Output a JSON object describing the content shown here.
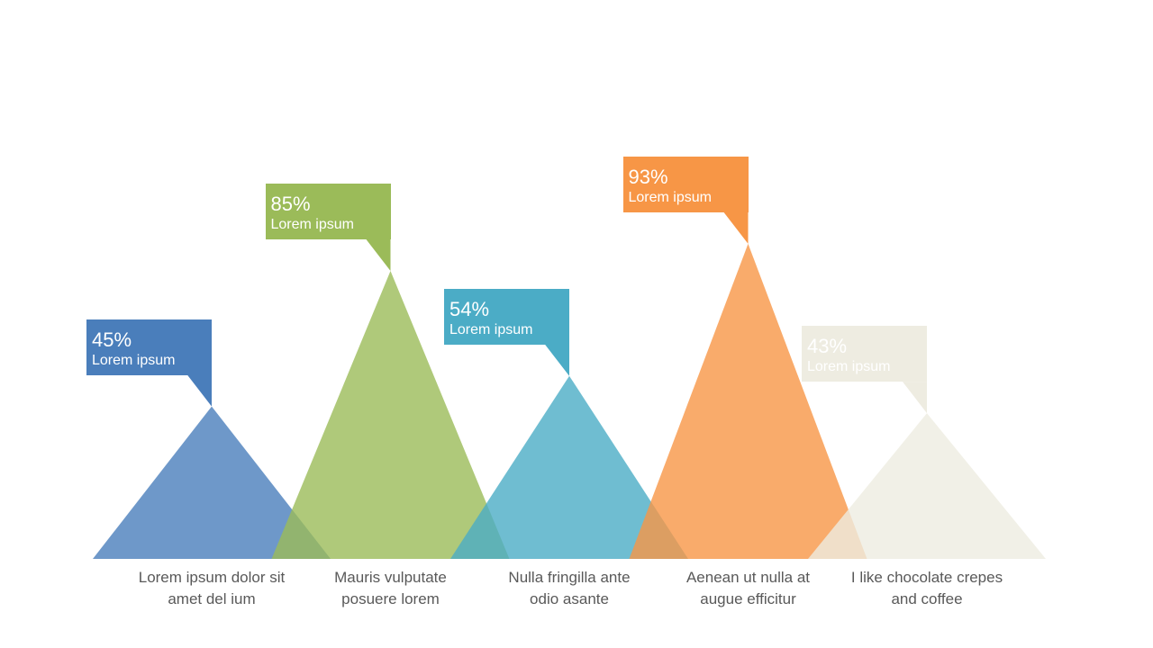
{
  "chart_data": {
    "type": "bar",
    "categories": [
      "Lorem ipsum dolor sit amet del ium",
      "Mauris vulputate posuere lorem",
      "Nulla fringilla ante odio asante",
      "Aenean ut nulla at augue efficitur",
      "I like chocolate crepes and coffee"
    ],
    "values": [
      45,
      85,
      54,
      93,
      43
    ],
    "value_labels": [
      "45%",
      "85%",
      "54%",
      "93%",
      "43%"
    ],
    "series_label": "Lorem ipsum",
    "ylim": [
      0,
      100
    ],
    "grid": false,
    "legend": "none",
    "colors": [
      "#4a7ebb",
      "#9bbb59",
      "#4bacc6",
      "#f79646",
      "#eeece1"
    ]
  },
  "captions": [
    [
      "Lorem ipsum dolor sit",
      "amet del ium"
    ],
    [
      "Mauris vulputate",
      "posuere lorem"
    ],
    [
      "Nulla fringilla ante",
      "odio asante"
    ],
    [
      "Aenean ut nulla at",
      "augue efficitur"
    ],
    [
      "I like chocolate crepes",
      "and coffee"
    ]
  ]
}
